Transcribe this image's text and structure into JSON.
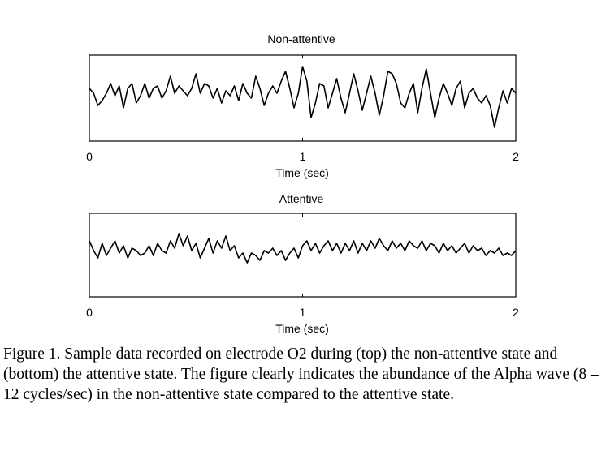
{
  "chart_data": [
    {
      "type": "line",
      "title": "Non-attentive",
      "xlabel": "Time (sec)",
      "ylabel": "",
      "xlim": [
        0,
        2
      ],
      "x_ticks": [
        "0",
        "1",
        "2"
      ],
      "series": [
        {
          "x": [
            0.0,
            0.02,
            0.04,
            0.06,
            0.08,
            0.1,
            0.12,
            0.14,
            0.16,
            0.18,
            0.2,
            0.22,
            0.24,
            0.26,
            0.28,
            0.3,
            0.32,
            0.34,
            0.36,
            0.38,
            0.4,
            0.42,
            0.44,
            0.46,
            0.48,
            0.5,
            0.52,
            0.54,
            0.56,
            0.58,
            0.6,
            0.62,
            0.64,
            0.66,
            0.68,
            0.7,
            0.72,
            0.74,
            0.76,
            0.78,
            0.8,
            0.82,
            0.84,
            0.86,
            0.88,
            0.9,
            0.92,
            0.94,
            0.96,
            0.98,
            1.0,
            1.02,
            1.04,
            1.06,
            1.08,
            1.1,
            1.12,
            1.14,
            1.16,
            1.18,
            1.2,
            1.22,
            1.24,
            1.26,
            1.28,
            1.3,
            1.32,
            1.34,
            1.36,
            1.38,
            1.4,
            1.42,
            1.44,
            1.46,
            1.48,
            1.5,
            1.52,
            1.54,
            1.56,
            1.58,
            1.6,
            1.62,
            1.64,
            1.66,
            1.68,
            1.7,
            1.72,
            1.74,
            1.76,
            1.78,
            1.8,
            1.82,
            1.84,
            1.86,
            1.88,
            1.9,
            1.92,
            1.94,
            1.96,
            1.98,
            2.0
          ],
          "values": [
            0.2,
            0.1,
            -0.15,
            -0.05,
            0.1,
            0.3,
            0.05,
            0.25,
            -0.2,
            0.2,
            0.3,
            -0.1,
            0.05,
            0.3,
            0.0,
            0.2,
            0.25,
            0.0,
            0.15,
            0.45,
            0.1,
            0.25,
            0.15,
            0.05,
            0.2,
            0.5,
            0.1,
            0.3,
            0.25,
            0.0,
            0.2,
            -0.1,
            0.15,
            0.05,
            0.25,
            -0.05,
            0.3,
            0.1,
            0.0,
            0.45,
            0.2,
            -0.15,
            0.1,
            0.25,
            0.1,
            0.35,
            0.55,
            0.2,
            -0.2,
            0.1,
            0.65,
            0.35,
            -0.4,
            -0.1,
            0.3,
            0.25,
            -0.2,
            0.1,
            0.4,
            0.0,
            -0.3,
            0.1,
            0.5,
            0.15,
            -0.25,
            0.1,
            0.45,
            0.1,
            -0.35,
            0.05,
            0.55,
            0.5,
            0.3,
            -0.1,
            -0.2,
            0.1,
            0.3,
            -0.3,
            0.2,
            0.6,
            0.1,
            -0.4,
            0.0,
            0.3,
            0.1,
            -0.15,
            0.2,
            0.35,
            -0.2,
            0.1,
            0.2,
            0.0,
            -0.1,
            0.05,
            -0.15,
            -0.6,
            -0.2,
            0.15,
            -0.1,
            0.2,
            0.1
          ]
        }
      ]
    },
    {
      "type": "line",
      "title": "Attentive",
      "xlabel": "Time (sec)",
      "ylabel": "",
      "xlim": [
        0,
        2
      ],
      "x_ticks": [
        "0",
        "1",
        "2"
      ],
      "series": [
        {
          "x": [
            0.0,
            0.02,
            0.04,
            0.06,
            0.08,
            0.1,
            0.12,
            0.14,
            0.16,
            0.18,
            0.2,
            0.22,
            0.24,
            0.26,
            0.28,
            0.3,
            0.32,
            0.34,
            0.36,
            0.38,
            0.4,
            0.42,
            0.44,
            0.46,
            0.48,
            0.5,
            0.52,
            0.54,
            0.56,
            0.58,
            0.6,
            0.62,
            0.64,
            0.66,
            0.68,
            0.7,
            0.72,
            0.74,
            0.76,
            0.78,
            0.8,
            0.82,
            0.84,
            0.86,
            0.88,
            0.9,
            0.92,
            0.94,
            0.96,
            0.98,
            1.0,
            1.02,
            1.04,
            1.06,
            1.08,
            1.1,
            1.12,
            1.14,
            1.16,
            1.18,
            1.2,
            1.22,
            1.24,
            1.26,
            1.28,
            1.3,
            1.32,
            1.34,
            1.36,
            1.38,
            1.4,
            1.42,
            1.44,
            1.46,
            1.48,
            1.5,
            1.52,
            1.54,
            1.56,
            1.58,
            1.6,
            1.62,
            1.64,
            1.66,
            1.68,
            1.7,
            1.72,
            1.74,
            1.76,
            1.78,
            1.8,
            1.82,
            1.84,
            1.86,
            1.88,
            1.9,
            1.92,
            1.94,
            1.96,
            1.98,
            2.0
          ],
          "values": [
            0.3,
            0.1,
            -0.05,
            0.25,
            0.0,
            0.15,
            0.3,
            0.05,
            0.2,
            -0.05,
            0.15,
            0.1,
            0.0,
            0.05,
            0.2,
            0.0,
            0.25,
            0.1,
            0.05,
            0.3,
            0.15,
            0.45,
            0.2,
            0.4,
            0.1,
            0.25,
            -0.05,
            0.15,
            0.35,
            0.05,
            0.3,
            0.15,
            0.4,
            0.1,
            0.2,
            -0.05,
            0.05,
            -0.15,
            0.05,
            0.0,
            -0.1,
            0.1,
            0.05,
            0.15,
            0.0,
            0.1,
            -0.1,
            0.05,
            0.15,
            -0.05,
            0.2,
            0.3,
            0.1,
            0.25,
            0.05,
            0.2,
            0.3,
            0.1,
            0.25,
            0.05,
            0.25,
            0.1,
            0.3,
            0.05,
            0.25,
            0.1,
            0.3,
            0.15,
            0.35,
            0.2,
            0.1,
            0.3,
            0.15,
            0.25,
            0.1,
            0.3,
            0.2,
            0.15,
            0.3,
            0.1,
            0.25,
            0.2,
            0.05,
            0.25,
            0.1,
            0.2,
            0.05,
            0.15,
            0.25,
            0.05,
            0.2,
            0.1,
            0.15,
            0.0,
            0.1,
            0.05,
            0.15,
            0.0,
            0.05,
            0.0,
            0.1
          ]
        }
      ]
    }
  ],
  "caption": "Figure 1. Sample data recorded on electrode O2 during (top) the non-attentive state and (bottom) the attentive state. The figure clearly indicates the abundance of the Alpha wave (8 – 12 cycles/sec) in the non-attentive state compared to the attentive state."
}
